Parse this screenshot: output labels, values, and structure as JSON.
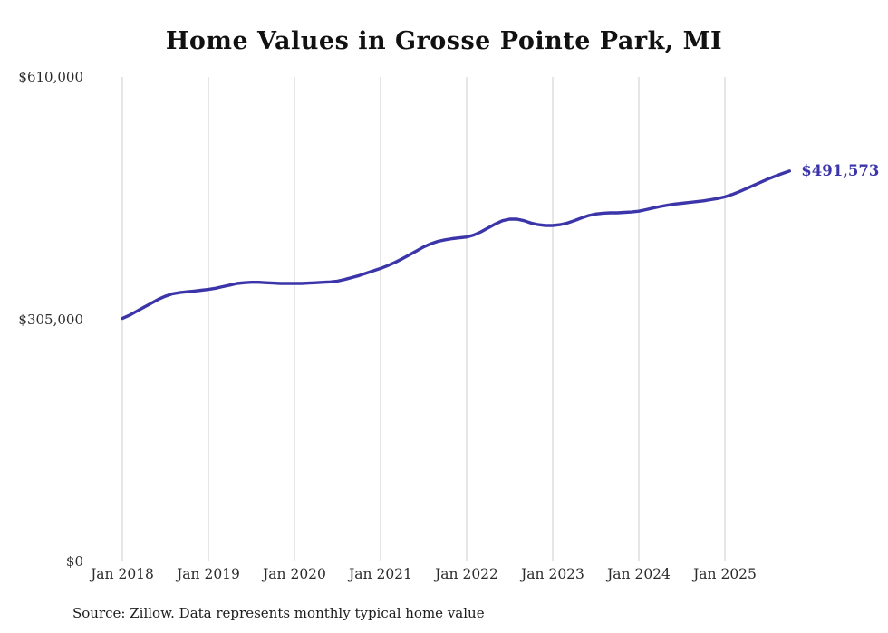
{
  "title": "Home Values in Grosse Pointe Park, MI",
  "end_label": "$491,573",
  "source": "Source: Zillow. Data represents monthly typical home value",
  "colors": {
    "line": "#3b35a9",
    "grid": "#cccccc",
    "text": "#2b2b2b"
  },
  "y_axis": {
    "ticks": [
      {
        "text": "$610,000",
        "value": 610000
      },
      {
        "text": "$305,000",
        "value": 305000
      },
      {
        "text": "$0",
        "value": 0
      }
    ]
  },
  "x_axis": {
    "labels": [
      "Jan 2018",
      "Jan 2019",
      "Jan 2020",
      "Jan 2021",
      "Jan 2022",
      "Jan 2023",
      "Jan 2024",
      "Jan 2025"
    ]
  },
  "chart_data": {
    "type": "line",
    "title": "Home Values in Grosse Pointe Park, MI",
    "series_name": "Typical home value",
    "frequency": "monthly",
    "x_start": "Jan 2018",
    "x_end": "Oct 2025",
    "ylim": [
      0,
      610000
    ],
    "gridlines": "vertical-yearly",
    "final_value": 491573,
    "values": [
      306000,
      310000,
      315000,
      320000,
      325000,
      330000,
      334000,
      337000,
      338500,
      339500,
      340500,
      341500,
      342500,
      344000,
      346000,
      348000,
      350000,
      351000,
      351500,
      351500,
      351000,
      350500,
      350000,
      350000,
      350000,
      350000,
      350500,
      351000,
      351500,
      352000,
      353000,
      355000,
      357500,
      360000,
      363000,
      366000,
      369000,
      372500,
      376500,
      381000,
      386000,
      391000,
      396000,
      400000,
      403000,
      405000,
      406500,
      407500,
      408500,
      411000,
      415000,
      420000,
      425000,
      429000,
      431000,
      431000,
      429000,
      426000,
      424000,
      423000,
      423000,
      424000,
      426000,
      429000,
      432500,
      435500,
      437500,
      438500,
      439000,
      439000,
      439500,
      440000,
      441000,
      443000,
      445000,
      447000,
      448500,
      450000,
      451000,
      452000,
      453000,
      454000,
      455500,
      457000,
      459000,
      462000,
      465500,
      469500,
      473500,
      477500,
      481500,
      485000,
      488500,
      491573
    ]
  }
}
